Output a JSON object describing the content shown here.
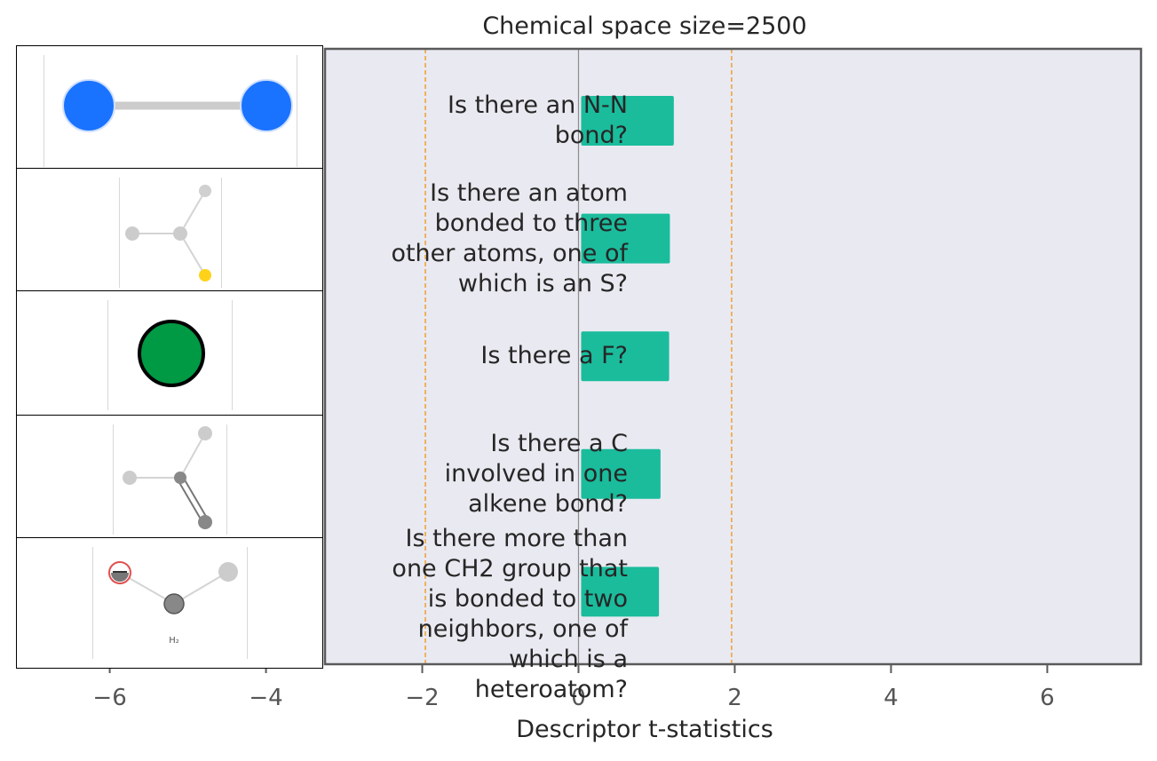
{
  "chart_data": {
    "type": "bar",
    "orientation": "horizontal",
    "title": "Chemical space size=2500",
    "xlabel": "Descriptor t-statistics",
    "xlim": [
      -7.2,
      7.2
    ],
    "xticks": [
      "−6",
      "−4",
      "−2",
      "0",
      "2",
      "4",
      "6"
    ],
    "xtick_values": [
      -6,
      -4,
      -2,
      0,
      2,
      4,
      6
    ],
    "significance_lines": [
      -1.96,
      1.96
    ],
    "categories": [
      "Is there an N-N\nbond?",
      "Is there an atom\nbonded to three\nother atoms, one of\nwhich is an S?",
      "Is there a F?",
      "Is there a C\ninvolved in one\nalkene bond?",
      "Is there more than\none CH2 group that\nis bonded to two\nneighbors, one of\nwhich is a\nheteroatom?"
    ],
    "values": [
      1.22,
      1.17,
      1.16,
      1.05,
      1.03
    ],
    "grid": false,
    "colors": {
      "bar": "#1abc9c",
      "plot_bg": "#e9e9f1",
      "significance": "#f0a030",
      "zero_line": "#8c8c8c",
      "frame": "#5a5a5a"
    }
  }
}
